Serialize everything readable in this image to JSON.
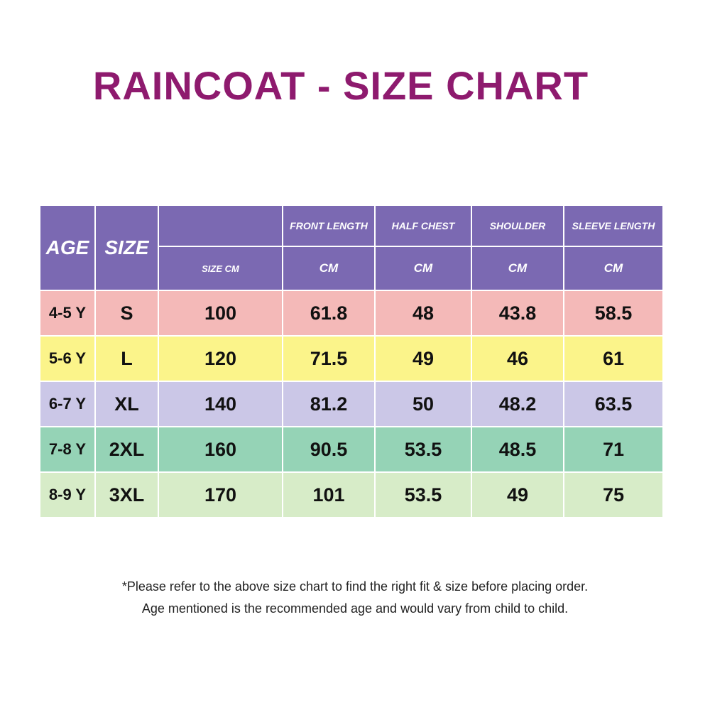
{
  "title": "RAINCOAT - SIZE CHART",
  "table": {
    "header": {
      "age": "AGE",
      "size": "SIZE",
      "columns": [
        {
          "bottom": "SIZE CM"
        },
        {
          "top": "FRONT LENGTH",
          "bottom": "CM"
        },
        {
          "top": "HALF CHEST",
          "bottom": "CM"
        },
        {
          "top": "SHOULDER",
          "bottom": "CM"
        },
        {
          "top": "SLEEVE LENGTH",
          "bottom": "CM"
        }
      ]
    },
    "rows": [
      [
        "4-5 Y",
        "S",
        "100",
        "61.8",
        "48",
        "43.8",
        "58.5"
      ],
      [
        "5-6 Y",
        "L",
        "120",
        "71.5",
        "49",
        "46",
        "61"
      ],
      [
        "6-7 Y",
        "XL",
        "140",
        "81.2",
        "50",
        "48.2",
        "63.5"
      ],
      [
        "7-8 Y",
        "2XL",
        "160",
        "90.5",
        "53.5",
        "48.5",
        "71"
      ],
      [
        "8-9 Y",
        "3XL",
        "170",
        "101",
        "53.5",
        "49",
        "75"
      ]
    ]
  },
  "footnote": [
    "*Please refer to the above size chart to find the right fit & size before placing order.",
    "Age mentioned is the recommended age and would vary from child to child."
  ]
}
